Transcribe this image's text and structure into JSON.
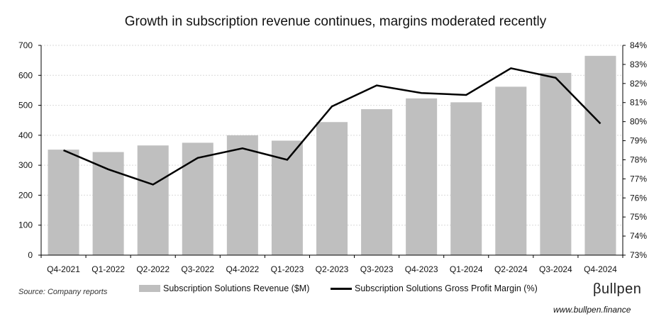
{
  "title": "Growth in subscription revenue continues, margins moderated recently",
  "source": "Source: Company reports",
  "logo_text": "βullpen",
  "website": "www.bullpen.finance",
  "chart_data": {
    "type": "bar",
    "categories": [
      "Q4-2021",
      "Q1-2022",
      "Q2-2022",
      "Q3-2022",
      "Q4-2022",
      "Q1-2023",
      "Q2-2023",
      "Q3-2023",
      "Q4-2023",
      "Q1-2024",
      "Q2-2024",
      "Q3-2024",
      "Q4-2024"
    ],
    "series": [
      {
        "name": "Subscription Solutions Revenue ($M)",
        "type": "bar",
        "axis": "left",
        "color": "#bfbfbf",
        "values": [
          352,
          344,
          366,
          375,
          400,
          382,
          444,
          487,
          523,
          510,
          562,
          608,
          665
        ]
      },
      {
        "name": "Subscription Solutions Gross Profit Margin (%)",
        "type": "line",
        "axis": "right",
        "color": "#000000",
        "values": [
          78.5,
          77.5,
          76.7,
          78.1,
          78.6,
          78.0,
          80.8,
          81.9,
          81.5,
          81.4,
          82.8,
          82.3,
          79.9
        ]
      }
    ],
    "y_left": {
      "min": 0,
      "max": 700,
      "ticks": [
        "0",
        "100",
        "200",
        "300",
        "400",
        "500",
        "600",
        "700"
      ]
    },
    "y_right": {
      "min": 73,
      "max": 84,
      "ticks": [
        "73%",
        "74%",
        "75%",
        "76%",
        "77%",
        "78%",
        "79%",
        "80%",
        "81%",
        "82%",
        "83%",
        "84%"
      ]
    },
    "grid": true,
    "legend_position": "bottom"
  }
}
